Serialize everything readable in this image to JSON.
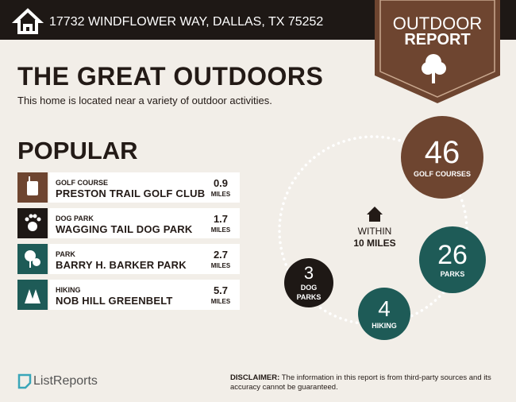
{
  "header": {
    "address": "17732 WINDFLOWER WAY, DALLAS, TX 75252"
  },
  "badge": {
    "line1": "OUTDOOR",
    "line2": "REPORT"
  },
  "title": "THE GREAT OUTDOORS",
  "subtitle": "This home is located near a variety of outdoor activities.",
  "popular": {
    "heading": "POPULAR",
    "items": [
      {
        "category": "GOLF COURSE",
        "name": "PRESTON TRAIL GOLF CLUB",
        "distance": 0.9,
        "unit": "MILES"
      },
      {
        "category": "DOG PARK",
        "name": "WAGGING TAIL DOG PARK",
        "distance": 1.7,
        "unit": "MILES"
      },
      {
        "category": "PARK",
        "name": "BARRY H. BARKER PARK",
        "distance": 2.7,
        "unit": "MILES"
      },
      {
        "category": "HIKING",
        "name": "NOB HILL GREENBELT",
        "distance": 5.7,
        "unit": "MILES"
      }
    ]
  },
  "radius": {
    "line1": "WITHIN",
    "line2": "10 MILES"
  },
  "counts": [
    {
      "value": 46,
      "label": "GOLF COURSES"
    },
    {
      "value": 26,
      "label": "PARKS"
    },
    {
      "value": 4,
      "label": "HIKING"
    },
    {
      "value": 3,
      "label": "DOG PARKS"
    }
  ],
  "footer": {
    "brand": "ListReports",
    "disclaimer_label": "DISCLAIMER:",
    "disclaimer": "The information in this report is from third-party sources and its accuracy cannot be guaranteed."
  }
}
